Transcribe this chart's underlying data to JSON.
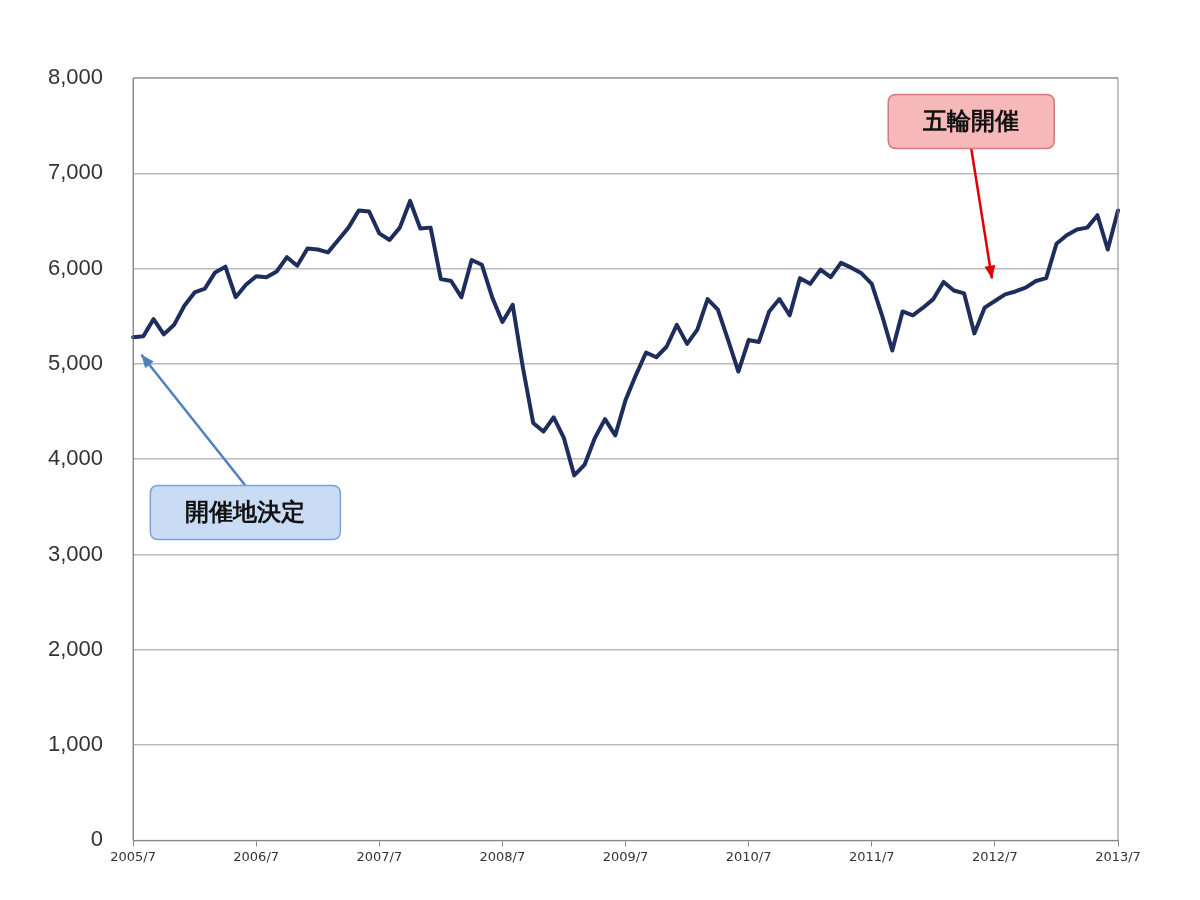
{
  "chart_data": {
    "type": "line",
    "categories": [
      "2005/7",
      null,
      null,
      null,
      null,
      null,
      null,
      null,
      null,
      null,
      null,
      null,
      "2006/7",
      null,
      null,
      null,
      null,
      null,
      null,
      null,
      null,
      null,
      null,
      null,
      "2007/7",
      null,
      null,
      null,
      null,
      null,
      null,
      null,
      null,
      null,
      null,
      null,
      "2008/7",
      null,
      null,
      null,
      null,
      null,
      null,
      null,
      null,
      null,
      null,
      null,
      "2009/7",
      null,
      null,
      null,
      null,
      null,
      null,
      null,
      null,
      null,
      null,
      null,
      "2010/7",
      null,
      null,
      null,
      null,
      null,
      null,
      null,
      null,
      null,
      null,
      null,
      "2011/7",
      null,
      null,
      null,
      null,
      null,
      null,
      null,
      null,
      null,
      null,
      null,
      "2012/7",
      null,
      null,
      null,
      null,
      null,
      null,
      null,
      null,
      null,
      null,
      null,
      "2013/7"
    ],
    "series": [
      {
        "color": "#1f2d5c",
        "values": [
          5280,
          5290,
          5470,
          5310,
          5410,
          5610,
          5750,
          5790,
          5960,
          6020,
          5700,
          5830,
          5920,
          5910,
          5970,
          6120,
          6030,
          6210,
          6200,
          6170,
          6300,
          6430,
          6610,
          6600,
          6370,
          6300,
          6430,
          6710,
          6420,
          6430,
          5890,
          5870,
          5700,
          6090,
          6040,
          5700,
          5440,
          5620,
          4960,
          4380,
          4290,
          4440,
          4220,
          3830,
          3940,
          4220,
          4420,
          4250,
          4620,
          4880,
          5120,
          5070,
          5180,
          5410,
          5210,
          5360,
          5680,
          5570,
          5250,
          4920,
          5250,
          5230,
          5550,
          5680,
          5510,
          5900,
          5840,
          5990,
          5910,
          6060,
          6010,
          5950,
          5840,
          5510,
          5140,
          5550,
          5510,
          5590,
          5680,
          5860,
          5770,
          5740,
          5320,
          5590,
          5660,
          5730,
          5760,
          5800,
          5870,
          5900,
          6260,
          6350,
          6410,
          6430,
          6560,
          6200,
          6610
        ]
      }
    ],
    "ylim": [
      0,
      8000
    ],
    "yticks": [
      {
        "value": 0,
        "label": "0"
      },
      {
        "value": 1000,
        "label": "1,000"
      },
      {
        "value": 2000,
        "label": "2,000"
      },
      {
        "value": 3000,
        "label": "3,000"
      },
      {
        "value": 4000,
        "label": "4,000"
      },
      {
        "value": 5000,
        "label": "5,000"
      },
      {
        "value": 6000,
        "label": "6,000"
      },
      {
        "value": 7000,
        "label": "7,000"
      },
      {
        "value": 8000,
        "label": "8,000"
      }
    ],
    "grid": "y",
    "annotations": [
      "開催地決定",
      "五輪開催"
    ]
  }
}
